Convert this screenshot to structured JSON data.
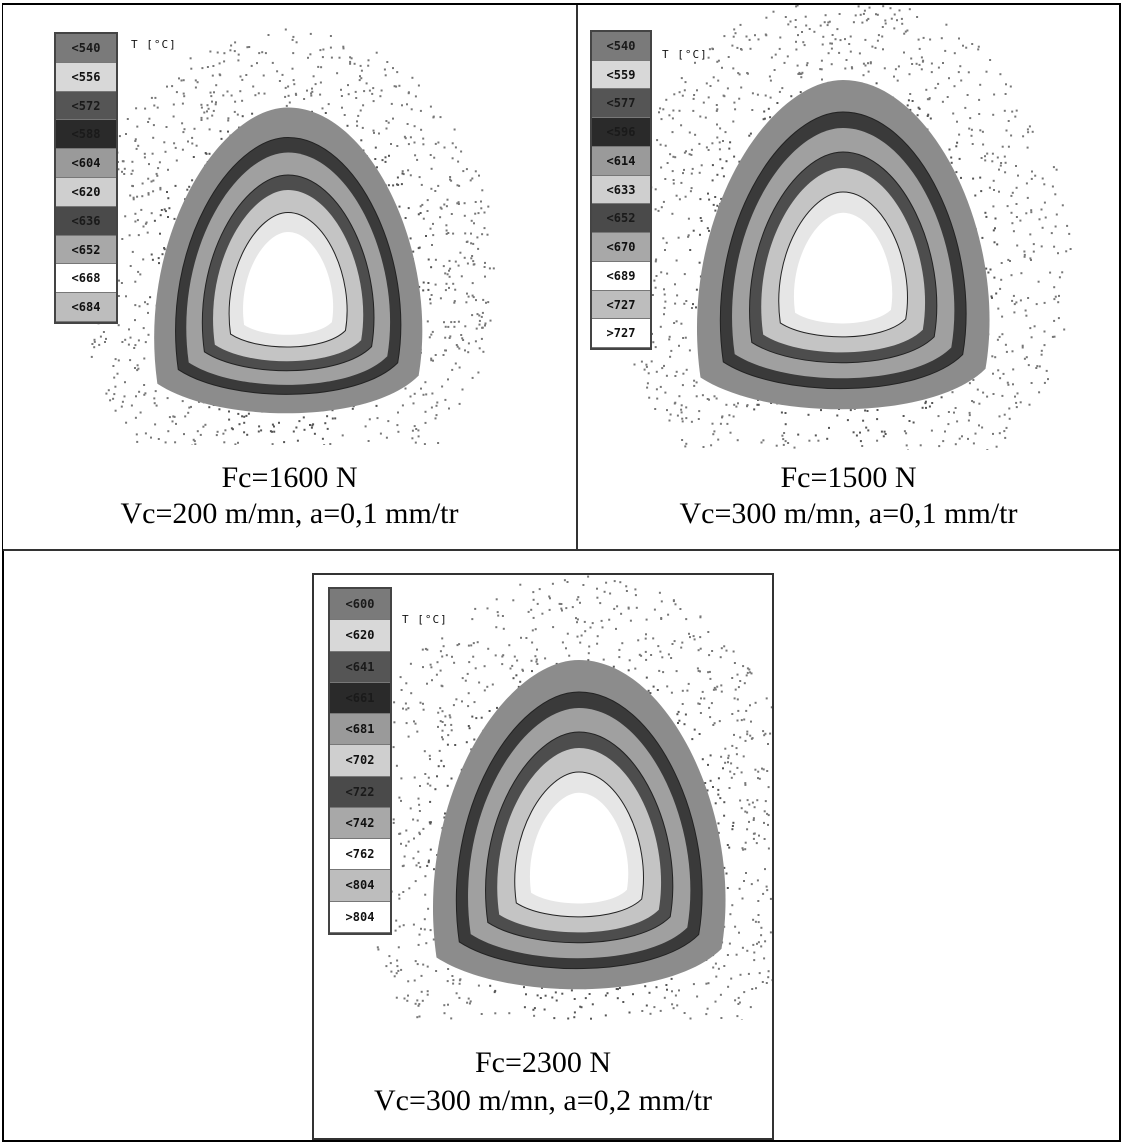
{
  "panels": [
    {
      "unit_label": "T [°C]",
      "legend": [
        "<540",
        "<556",
        "<572",
        "<588",
        "<604",
        "<620",
        "<636",
        "<652",
        "<668",
        "<684"
      ],
      "caption_force": "Fc=1600 N",
      "caption_conditions": "Vc=200 m/mn, a=0,1 mm/tr"
    },
    {
      "unit_label": "T [°C]",
      "legend": [
        "<540",
        "<559",
        "<577",
        "<596",
        "<614",
        "<633",
        "<652",
        "<670",
        "<689",
        "<727",
        ">727"
      ],
      "caption_force": "Fc=1500 N",
      "caption_conditions": "Vc=300 m/mn, a=0,1 mm/tr"
    },
    {
      "unit_label": "T [°C]",
      "legend": [
        "<600",
        "<620",
        "<641",
        "<661",
        "<681",
        "<702",
        "<722",
        "<742",
        "<762",
        "<804",
        ">804"
      ],
      "caption_force": "Fc=2300 N",
      "caption_conditions": "Vc=300 m/mn, a=0,2 mm/tr"
    }
  ],
  "legend_shades": [
    "#7a7a7a",
    "#d8d8d8",
    "#555555",
    "#2a2a2a",
    "#9a9a9a",
    "#cfcfcf",
    "#4a4a4a",
    "#a8a8a8",
    "#ffffff",
    "#bdbdbd",
    "#ffffff"
  ]
}
